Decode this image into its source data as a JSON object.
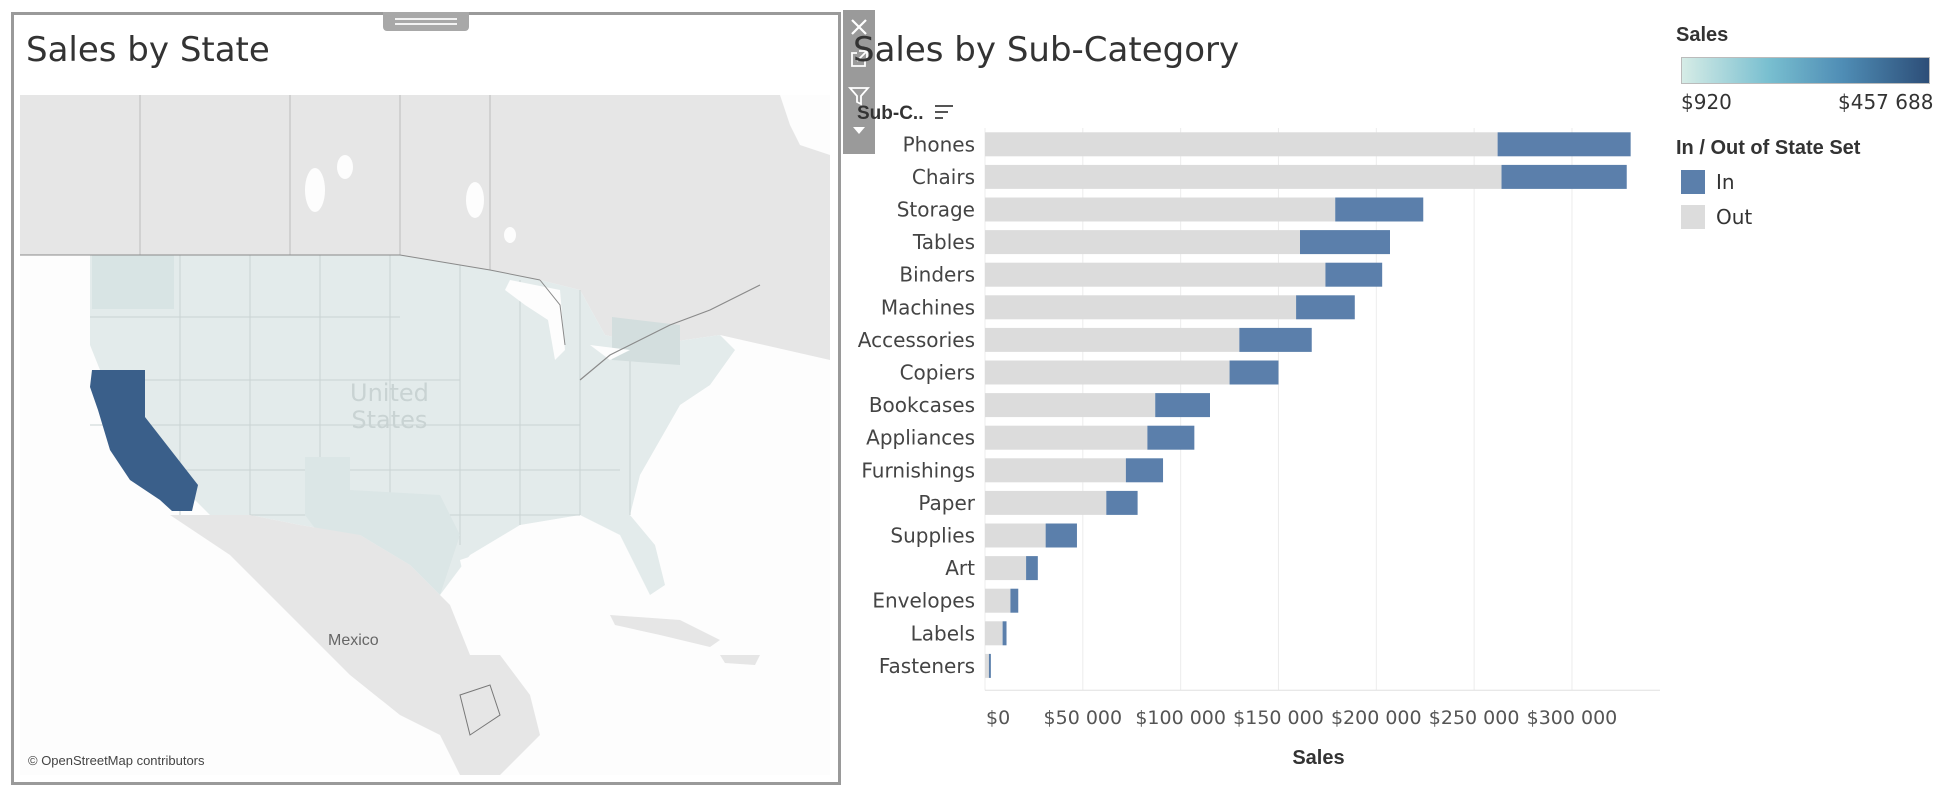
{
  "map": {
    "title": "Sales by State",
    "country_label": "United\nStates",
    "country_line1": "United",
    "country_line2": "States",
    "mexico_label": "Mexico",
    "credit": "© OpenStreetMap contributors",
    "highlight_state": "California",
    "highlight_color": "#3a5f8a"
  },
  "toolbar": {
    "icons": [
      "close-icon",
      "popout-icon",
      "filter-icon",
      "more-options-icon"
    ]
  },
  "chart": {
    "title": "Sales by Sub-Category",
    "column_header": "Sub-C..",
    "axis_title": "Sales",
    "tick_labels": [
      "$0",
      "$50 000",
      "$100 000",
      "$150 000",
      "$200 000",
      "$250 000",
      "$300 000"
    ]
  },
  "chart_data": {
    "type": "bar",
    "orientation": "horizontal",
    "stacked": true,
    "title": "Sales by Sub-Category",
    "xlabel": "Sales",
    "ylabel": "Sub-C..",
    "xlim": [
      0,
      345000
    ],
    "grid": true,
    "categories": [
      "Phones",
      "Chairs",
      "Storage",
      "Tables",
      "Binders",
      "Machines",
      "Accessories",
      "Copiers",
      "Bookcases",
      "Appliances",
      "Furnishings",
      "Paper",
      "Supplies",
      "Art",
      "Envelopes",
      "Labels",
      "Fasteners"
    ],
    "series": [
      {
        "name": "Out",
        "color": "#dcdcdc",
        "values": [
          262000,
          264000,
          179000,
          161000,
          174000,
          159000,
          130000,
          125000,
          87000,
          83000,
          72000,
          62000,
          31000,
          21000,
          13000,
          9000,
          2000
        ]
      },
      {
        "name": "In",
        "color": "#5b7fab",
        "values": [
          68000,
          64000,
          45000,
          46000,
          29000,
          30000,
          37000,
          25000,
          28000,
          24000,
          19000,
          16000,
          16000,
          6000,
          4000,
          2000,
          1000
        ]
      }
    ]
  },
  "legends": {
    "sales": {
      "title": "Sales",
      "min": "$920",
      "max": "$457 688"
    },
    "set": {
      "title": "In / Out of State Set",
      "in_label": "In",
      "out_label": "Out",
      "in_color": "#5b7fab",
      "out_color": "#dcdcdc"
    }
  }
}
